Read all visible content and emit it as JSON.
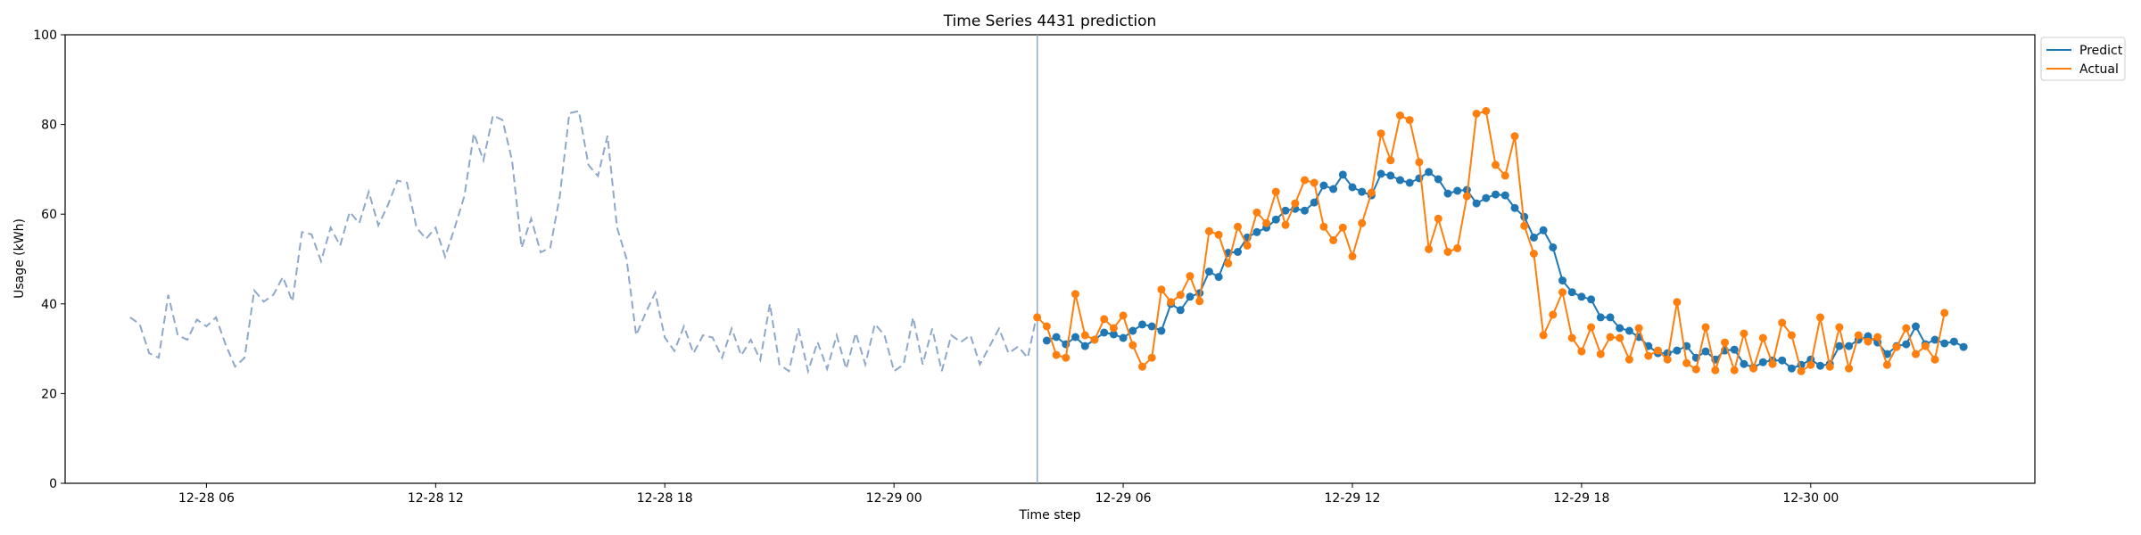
{
  "chart_data": {
    "type": "line",
    "title": "Time Series 4431 prediction",
    "xlabel": "Time step",
    "ylabel": "Usage (kWh)",
    "ylim": [
      0,
      100
    ],
    "yticks": [
      0,
      20,
      40,
      60,
      80,
      100
    ],
    "xlim": [
      "2027-12-28 02:18",
      "2027-12-30 05:52"
    ],
    "xticks": [
      {
        "t": "2027-12-28 06:00",
        "label": "12-28 06"
      },
      {
        "t": "2027-12-28 12:00",
        "label": "12-28 12"
      },
      {
        "t": "2027-12-28 18:00",
        "label": "12-28 18"
      },
      {
        "t": "2027-12-29 00:00",
        "label": "12-29 00"
      },
      {
        "t": "2027-12-29 06:00",
        "label": "12-29 06"
      },
      {
        "t": "2027-12-29 12:00",
        "label": "12-29 12"
      },
      {
        "t": "2027-12-29 18:00",
        "label": "12-29 18"
      },
      {
        "t": "2027-12-30 00:00",
        "label": "12-30 00"
      }
    ],
    "cutoff": "2027-12-29 03:45",
    "grid": false,
    "legend_position": "outside-top-right",
    "colors": {
      "history": "#8fa8c8",
      "predict": "#1f77b4",
      "actual": "#ff7f0e",
      "cutoff": "#8fa8c8"
    },
    "history": {
      "start": "2027-12-28 04:00",
      "step_minutes": 15,
      "values": [
        37.0,
        35.5,
        29.0,
        28.0,
        42.0,
        33.0,
        32.0,
        36.5,
        35.0,
        37.0,
        31.0,
        26.0,
        28.0,
        43.0,
        40.5,
        42.0,
        46.0,
        40.5,
        56.0,
        55.5,
        49.5,
        57.0,
        53.0,
        60.5,
        58.0,
        65.0,
        57.5,
        62.0,
        67.5,
        67.0,
        57.0,
        54.5,
        57.0,
        50.5,
        57.0,
        64.0,
        78.0,
        72.0,
        82.0,
        81.0,
        72.0,
        52.5,
        59.0,
        51.5,
        52.5,
        64.0,
        82.5,
        83.0,
        71.0,
        68.5,
        77.5,
        57.0,
        50.0,
        33.0,
        38.0,
        42.5,
        32.5,
        29.5,
        35.0,
        29.0,
        33.0,
        32.5,
        28.0,
        34.5,
        28.5,
        32.0,
        27.5,
        40.0,
        26.5,
        25.0,
        34.5,
        25.0,
        31.5,
        25.5,
        33.0,
        25.5,
        33.5,
        26.5,
        35.5,
        33.0,
        25.0,
        26.5,
        37.0,
        26.5,
        34.5,
        25.0,
        33.0,
        31.5,
        33.0,
        26.5,
        30.5,
        34.5,
        29.0,
        30.5,
        28.0,
        38.0
      ]
    },
    "series": [
      {
        "name": "Predict",
        "start": "2027-12-29 04:00",
        "step_minutes": 15,
        "values": [
          31.8,
          32.6,
          31.0,
          32.6,
          30.6,
          32.0,
          33.6,
          33.2,
          32.4,
          34.0,
          35.4,
          35.0,
          34.0,
          40.0,
          38.6,
          41.6,
          42.4,
          47.2,
          46.0,
          51.4,
          51.6,
          54.8,
          56.0,
          57.0,
          58.8,
          60.8,
          61.2,
          60.8,
          62.6,
          66.4,
          65.6,
          68.8,
          66.0,
          65.0,
          64.2,
          69.0,
          68.6,
          67.6,
          67.0,
          68.0,
          69.4,
          67.8,
          64.6,
          65.2,
          65.4,
          62.4,
          63.6,
          64.4,
          64.2,
          61.4,
          59.4,
          54.8,
          56.4,
          52.6,
          45.2,
          42.6,
          41.6,
          41.0,
          37.0,
          37.0,
          34.6,
          34.0,
          32.6,
          30.6,
          29.0,
          29.0,
          29.6,
          30.6,
          28.0,
          29.4,
          27.6,
          29.6,
          29.8,
          26.6,
          25.8,
          27.0,
          27.4,
          27.4,
          25.6,
          26.4,
          27.6,
          26.2,
          26.6,
          30.6,
          30.6,
          32.0,
          32.8,
          31.4,
          28.8,
          30.6,
          31.0,
          35.0,
          31.0,
          32.0,
          31.2,
          31.6,
          30.4
        ]
      },
      {
        "name": "Actual",
        "start": "2027-12-29 03:45",
        "step_minutes": 15,
        "values": [
          37.0,
          35.0,
          28.6,
          28.0,
          42.2,
          33.0,
          32.0,
          36.6,
          34.6,
          37.4,
          30.8,
          26.0,
          28.0,
          43.2,
          40.4,
          42.0,
          46.2,
          40.6,
          56.2,
          55.4,
          49.0,
          57.2,
          53.0,
          60.4,
          58.0,
          65.0,
          57.6,
          62.4,
          67.6,
          67.0,
          57.2,
          54.2,
          57.0,
          50.6,
          58.0,
          64.8,
          78.0,
          72.0,
          82.0,
          81.0,
          71.6,
          52.2,
          59.0,
          51.6,
          52.4,
          64.0,
          82.4,
          83.0,
          71.0,
          68.6,
          77.4,
          57.4,
          51.2,
          33.0,
          37.6,
          42.6,
          32.4,
          29.4,
          34.8,
          28.8,
          32.6,
          32.4,
          27.6,
          34.6,
          28.4,
          29.6,
          27.6,
          40.4,
          26.8,
          25.4,
          34.8,
          25.2,
          31.4,
          25.2,
          33.4,
          25.6,
          32.4,
          26.6,
          35.8,
          33.0,
          25.0,
          26.4,
          37.0,
          26.0,
          34.8,
          25.6,
          33.0,
          31.6,
          32.6,
          26.4,
          30.4,
          34.6,
          28.8,
          30.6,
          27.6,
          38.0
        ]
      }
    ]
  }
}
